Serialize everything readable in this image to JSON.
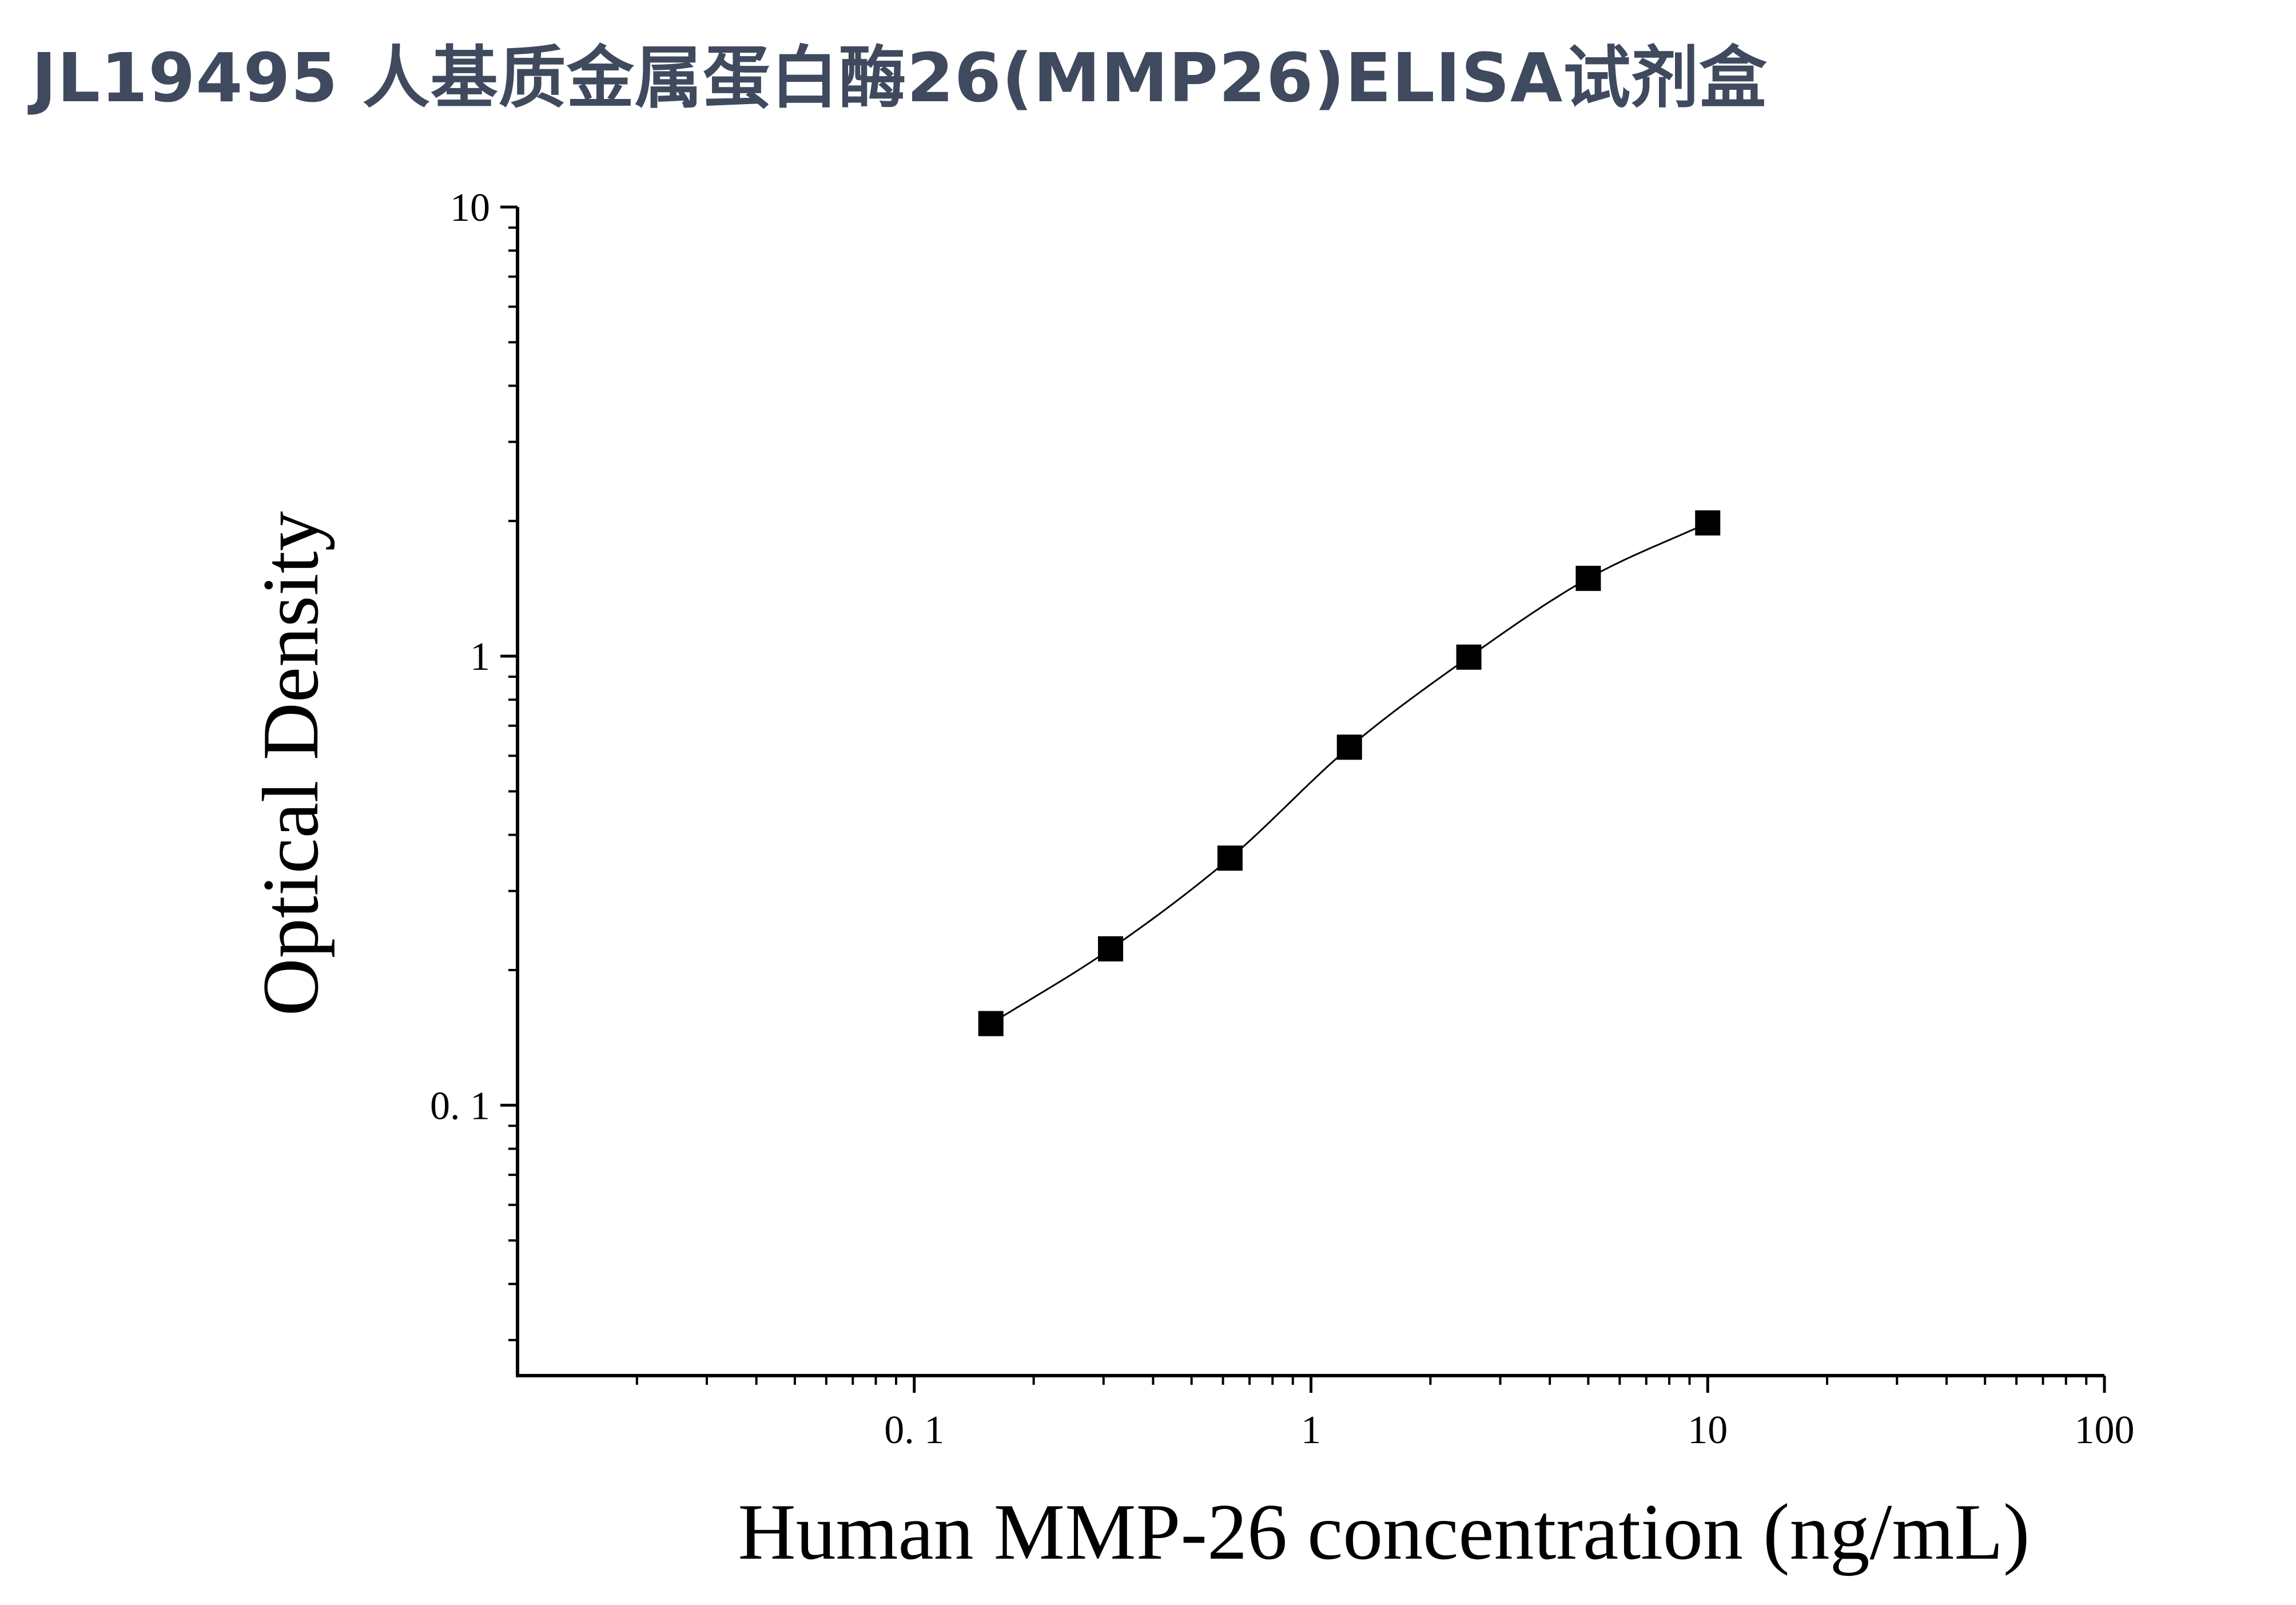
{
  "title": "JL19495 人基质金属蛋白酶26(MMP26)ELISA试剂盒",
  "chart_data": {
    "type": "scatter",
    "scale": {
      "x": "log",
      "y": "log"
    },
    "xlabel": "Human MMP-26 concentration (ng/mL)",
    "ylabel": "Optical Density",
    "xlim": [
      0.01,
      100
    ],
    "ylim": [
      0.025,
      10
    ],
    "x_tick_labels": [
      "0. 1",
      "1",
      "10",
      "100"
    ],
    "y_tick_labels": [
      "0. 1",
      "1",
      "10"
    ],
    "series": [
      {
        "marker": "square",
        "color": "#000000",
        "fit_line": true,
        "x": [
          0.156,
          0.3125,
          0.625,
          1.25,
          2.5,
          5,
          10
        ],
        "y": [
          0.152,
          0.223,
          0.355,
          0.627,
          0.995,
          1.49,
          1.98
        ]
      }
    ]
  }
}
